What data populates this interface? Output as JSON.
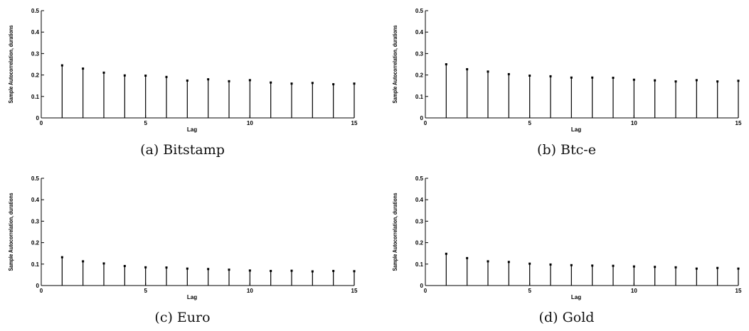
{
  "chart_data": [
    {
      "type": "stem",
      "caption": "(a) Bitstamp",
      "xlabel": "Lag",
      "ylabel": "Sample Autocorrelation, durations",
      "xlim": [
        0,
        15
      ],
      "ylim": [
        0,
        0.5
      ],
      "xticks": [
        0,
        5,
        10,
        15
      ],
      "yticks": [
        0,
        0.1,
        0.2,
        0.3,
        0.4,
        0.5
      ],
      "x": [
        1,
        2,
        3,
        4,
        5,
        6,
        7,
        8,
        9,
        10,
        11,
        12,
        13,
        14,
        15
      ],
      "values": [
        0.245,
        0.23,
        0.211,
        0.198,
        0.197,
        0.191,
        0.174,
        0.18,
        0.171,
        0.176,
        0.165,
        0.16,
        0.163,
        0.157,
        0.16
      ]
    },
    {
      "type": "stem",
      "caption": "(b) Btc-e",
      "xlabel": "Lag",
      "ylabel": "Sample Autocorrelation, durations",
      "xlim": [
        0,
        15
      ],
      "ylim": [
        0,
        0.5
      ],
      "xticks": [
        0,
        5,
        10,
        15
      ],
      "yticks": [
        0,
        0.1,
        0.2,
        0.3,
        0.4,
        0.5
      ],
      "x": [
        1,
        2,
        3,
        4,
        5,
        6,
        7,
        8,
        9,
        10,
        11,
        12,
        13,
        14,
        15
      ],
      "values": [
        0.25,
        0.227,
        0.216,
        0.204,
        0.197,
        0.194,
        0.188,
        0.188,
        0.187,
        0.178,
        0.175,
        0.17,
        0.176,
        0.17,
        0.173
      ]
    },
    {
      "type": "stem",
      "caption": "(c) Euro",
      "xlabel": "Lag",
      "ylabel": "Sample Autocorrelation, durations",
      "xlim": [
        0,
        15
      ],
      "ylim": [
        0,
        0.5
      ],
      "xticks": [
        0,
        5,
        10,
        15
      ],
      "yticks": [
        0,
        0.1,
        0.2,
        0.3,
        0.4,
        0.5
      ],
      "x": [
        1,
        2,
        3,
        4,
        5,
        6,
        7,
        8,
        9,
        10,
        11,
        12,
        13,
        14,
        15
      ],
      "values": [
        0.132,
        0.113,
        0.103,
        0.091,
        0.085,
        0.084,
        0.079,
        0.077,
        0.074,
        0.07,
        0.068,
        0.069,
        0.066,
        0.068,
        0.067
      ]
    },
    {
      "type": "stem",
      "caption": "(d) Gold",
      "xlabel": "Lag",
      "ylabel": "Sample Autocorrelation, durations",
      "xlim": [
        0,
        15
      ],
      "ylim": [
        0,
        0.5
      ],
      "xticks": [
        0,
        5,
        10,
        15
      ],
      "yticks": [
        0,
        0.1,
        0.2,
        0.3,
        0.4,
        0.5
      ],
      "x": [
        1,
        2,
        3,
        4,
        5,
        6,
        7,
        8,
        9,
        10,
        11,
        12,
        13,
        14,
        15
      ],
      "values": [
        0.148,
        0.128,
        0.113,
        0.11,
        0.102,
        0.098,
        0.095,
        0.093,
        0.092,
        0.089,
        0.087,
        0.085,
        0.079,
        0.082,
        0.079
      ]
    }
  ]
}
